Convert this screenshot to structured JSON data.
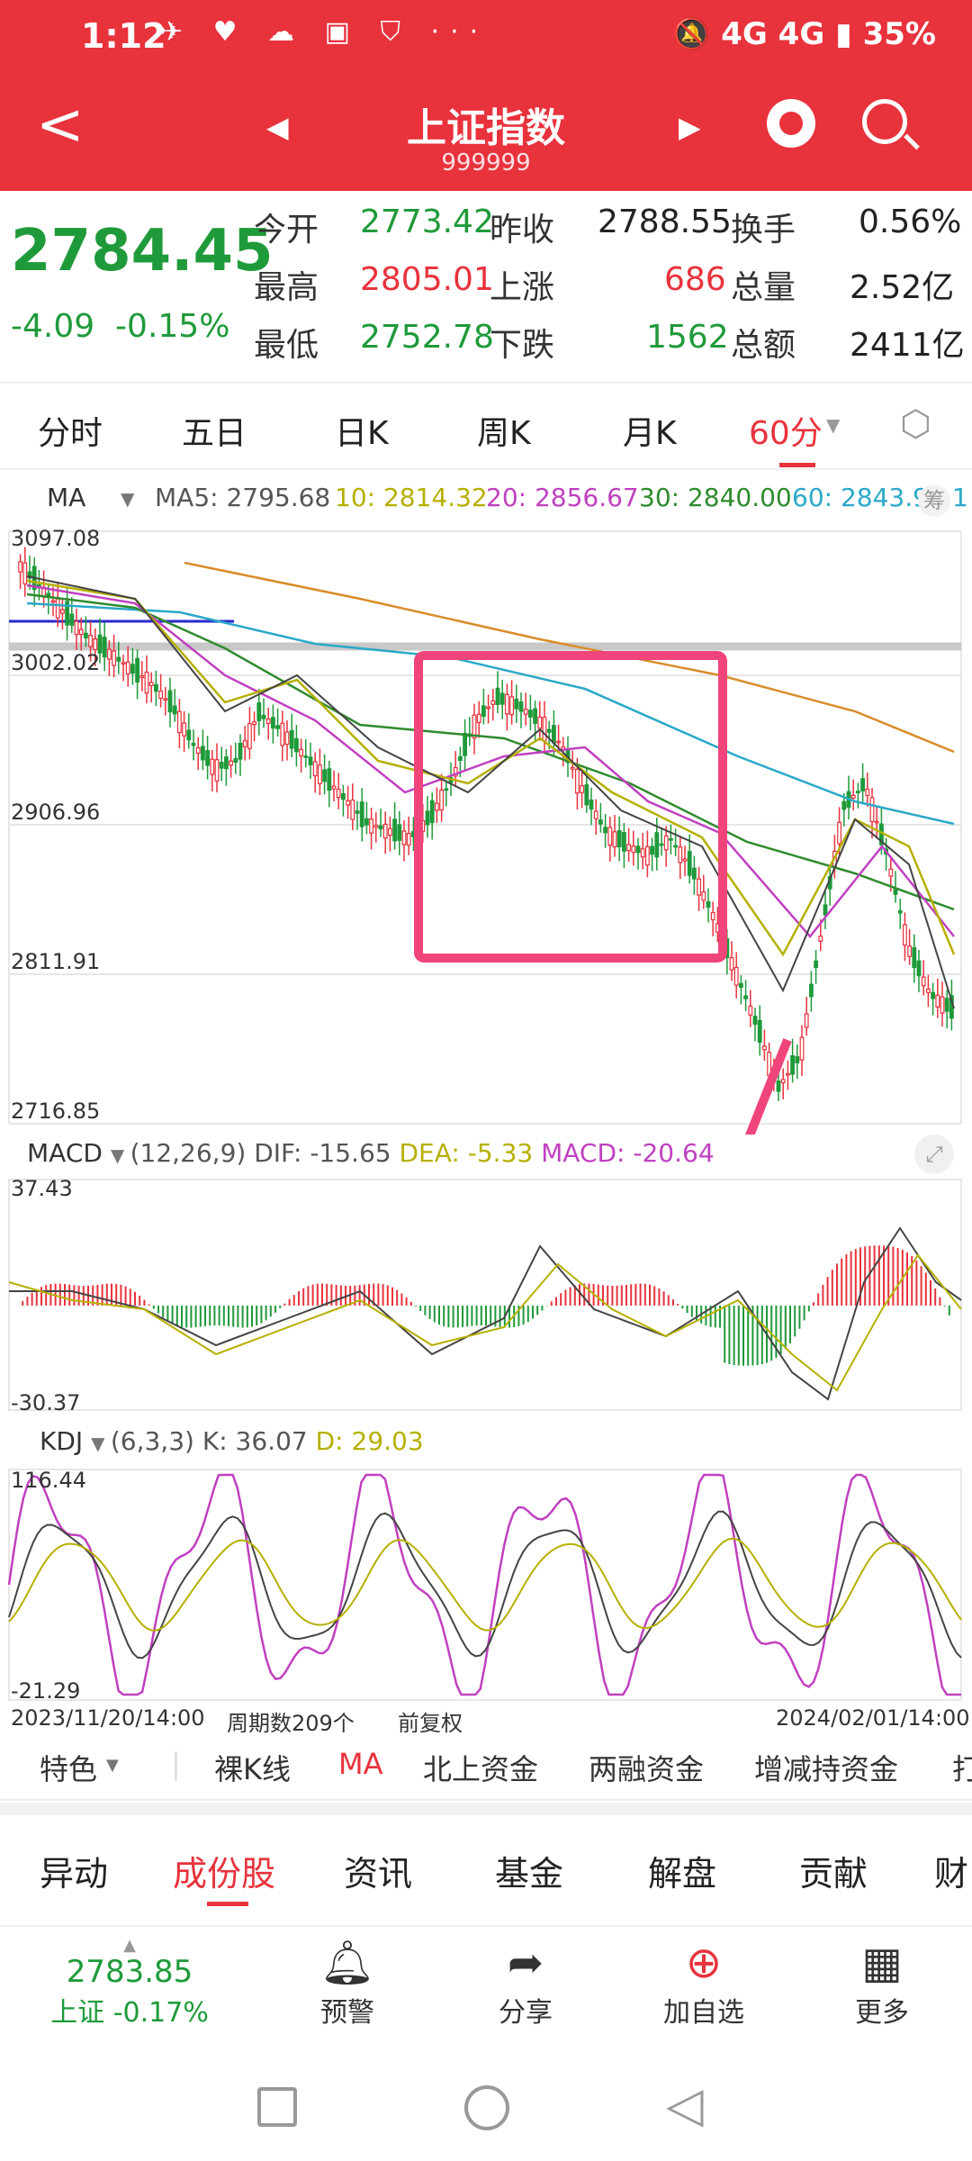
{
  "status": {
    "time": "1:12",
    "icons": "✈ ♥ ☁ ▣ ⛉ ···",
    "right": "🔕 4G 4G ▮ 35%"
  },
  "nav": {
    "back": "<",
    "prev": "◀",
    "next": "▶",
    "title": "上证指数",
    "code": "999999",
    "icons": [
      "mascot-icon",
      "search-icon"
    ]
  },
  "quote": {
    "price": "2784.45",
    "change": "-4.09",
    "change_pct": "-0.15%",
    "open_label": "今开",
    "open": "2773.42",
    "prev_close_label": "昨收",
    "prev_close": "2788.55",
    "turnover_label": "换手",
    "turnover": "0.56%",
    "high_label": "最高",
    "high": "2805.01",
    "up_label": "上涨",
    "up": "686",
    "volume_label": "总量",
    "volume": "2.52亿",
    "low_label": "最低",
    "low": "2752.78",
    "down_label": "下跌",
    "down": "1562",
    "amount_label": "总额",
    "amount": "2411亿"
  },
  "period_tabs": [
    "分时",
    "五日",
    "日K",
    "周K",
    "月K",
    "60分"
  ],
  "active_period": "60分",
  "ma_bar": {
    "name": "MA",
    "ma5": "MA5: 2795.68",
    "ma10": "10: 2814.32",
    "ma20": "20: 2856.67",
    "ma30": "30: 2840.00",
    "ma60": "60: 2843.9",
    "overlay_text": "筹",
    "tail": "1"
  },
  "colors": {
    "red": "#e8323c",
    "green": "#1f9a3a",
    "ma5": "#333333",
    "ma10": "#b5b000",
    "ma20": "#c040c0",
    "ma30": "#2e8b2e",
    "ma60": "#2aa8c8",
    "ma250": "#d98c2a",
    "annotation": "#f0457a"
  },
  "price_axis": [
    "3097.08",
    "3002.02",
    "2906.96",
    "2811.91",
    "2716.85"
  ],
  "macd_bar": {
    "name": "MACD",
    "params": "(12,26,9)",
    "dif": "DIF: -15.65",
    "dea": "DEA: -5.33",
    "macd": "MACD: -20.64"
  },
  "macd_axis": [
    "37.43",
    "-30.37"
  ],
  "kdj_bar": {
    "name": "KDJ",
    "params": "(6,3,3)",
    "k": "K: 36.07",
    "d": "D: 29.03"
  },
  "kdj_axis": [
    "116.44",
    "-21.29"
  ],
  "footer_axis": {
    "start": "2023/11/20/14:00",
    "periods": "周期数209个",
    "adjust": "前复权",
    "end": "2024/02/01/14:00"
  },
  "indicator_tabs": [
    "特色",
    "裸K线",
    "MA",
    "北上资金",
    "两融资金",
    "增减持资金",
    "打"
  ],
  "active_indicator": "MA",
  "sub_tabs": [
    "异动",
    "成份股",
    "资讯",
    "基金",
    "解盘",
    "贡献",
    "财"
  ],
  "active_sub_tab": "成份股",
  "bottom_quote": {
    "value": "2783.85",
    "label": "上证 -0.17%"
  },
  "actions": [
    {
      "label": "预警",
      "icon": "bell-icon"
    },
    {
      "label": "分享",
      "icon": "share-icon"
    },
    {
      "label": "加自选",
      "icon": "add-favorite-icon"
    },
    {
      "label": "更多",
      "icon": "grid-more-icon"
    }
  ],
  "chart_data": [
    {
      "type": "candlestick",
      "title": "上证指数 60分",
      "ylim": [
        2716.85,
        3097.08
      ],
      "y_ticks": [
        3097.08,
        3002.02,
        2906.96,
        2811.91,
        2716.85
      ],
      "x_range": [
        "2023/11/20/14:00",
        "2024/02/01/14:00"
      ],
      "series": [
        {
          "name": "close",
          "values": [
            3075,
            3060,
            3045,
            3030,
            3020,
            3010,
            3000,
            2985,
            2960,
            2945,
            2950,
            2980,
            2970,
            2955,
            2940,
            2925,
            2910,
            2905,
            2900,
            2915,
            2940,
            2975,
            2990,
            2985,
            2975,
            2960,
            2930,
            2905,
            2895,
            2890,
            2900,
            2880,
            2850,
            2815,
            2780,
            2740,
            2760,
            2840,
            2920,
            2935,
            2890,
            2830,
            2800,
            2790
          ]
        }
      ]
    },
    {
      "type": "bar",
      "title": "MACD",
      "ylim": [
        -30.37,
        37.43
      ]
    },
    {
      "type": "line",
      "title": "KDJ",
      "ylim": [
        -21.29,
        116.44
      ]
    }
  ]
}
